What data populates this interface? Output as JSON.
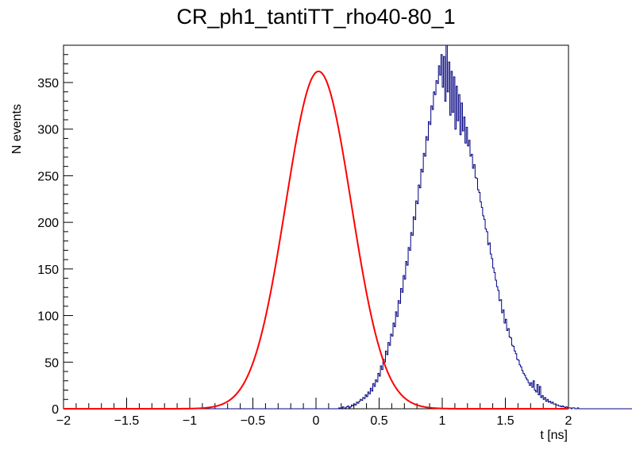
{
  "chart_data": {
    "type": "histogram",
    "title": "CR_ph1_tantiTT_rho40-80_1",
    "xlabel": "t [ns]",
    "ylabel": "N events",
    "xlim": [
      -2,
      2
    ],
    "ylim": [
      0,
      390
    ],
    "x_ticks": [
      -2,
      -1.5,
      -1,
      -0.5,
      0,
      0.5,
      1,
      1.5,
      2
    ],
    "x_tick_labels": [
      "−2",
      "−1.5",
      "−1",
      "−0.5",
      "0",
      "0.5",
      "1",
      "1.5",
      "2"
    ],
    "y_ticks": [
      0,
      50,
      100,
      150,
      200,
      250,
      300,
      350
    ],
    "y_tick_labels": [
      "0",
      "50",
      "100",
      "150",
      "200",
      "250",
      "300",
      "350"
    ],
    "histogram": {
      "name": "",
      "color": "#000080",
      "bin_start": -2,
      "bin_width": 0.01,
      "counts": [
        0,
        0,
        0,
        0,
        0,
        0,
        0,
        0,
        0,
        0,
        0,
        0,
        0,
        0,
        0,
        0,
        0,
        0,
        0,
        0,
        0,
        0,
        0,
        0,
        0,
        0,
        0,
        0,
        0,
        0,
        0,
        0,
        0,
        0,
        0,
        0,
        0,
        0,
        0,
        0,
        0,
        0,
        0,
        0,
        0,
        0,
        0,
        0,
        0,
        0,
        0,
        0,
        0,
        0,
        0,
        0,
        0,
        0,
        0,
        0,
        0,
        0,
        0,
        0,
        0,
        0,
        0,
        0,
        0,
        0,
        0,
        0,
        0,
        0,
        0,
        0,
        0,
        0,
        0,
        0,
        0,
        0,
        0,
        0,
        0,
        0,
        0,
        0,
        0,
        0,
        0,
        0,
        0,
        0,
        0,
        0,
        0,
        0,
        0,
        0,
        0,
        0,
        0,
        0,
        0,
        0,
        0,
        0,
        0,
        0,
        0,
        0,
        0,
        0,
        0,
        0,
        0,
        0,
        0,
        0,
        0,
        0,
        0,
        0,
        0,
        0,
        0,
        0,
        0,
        0,
        0,
        0,
        0,
        0,
        0,
        0,
        0,
        0,
        0,
        0,
        0,
        0,
        0,
        0,
        0,
        0,
        0,
        0,
        0,
        0,
        0,
        0,
        0,
        0,
        0,
        0,
        0,
        0,
        0,
        0,
        0,
        0,
        0,
        0,
        0,
        0,
        0,
        0,
        0,
        0,
        0,
        0,
        0,
        0,
        0,
        0,
        0,
        0,
        0,
        0,
        0,
        0,
        0,
        0,
        0,
        0,
        0,
        0,
        0,
        0,
        0,
        0,
        0,
        0,
        0,
        0,
        0,
        0,
        0,
        0,
        0,
        0,
        0,
        0,
        0,
        0,
        0,
        0,
        0,
        0,
        0,
        0,
        0,
        0,
        0,
        0,
        0,
        0,
        1,
        0,
        1,
        2,
        0,
        1,
        2,
        3,
        1,
        2,
        4,
        3,
        5,
        4,
        7,
        6,
        8,
        10,
        9,
        12,
        11,
        15,
        13,
        18,
        16,
        22,
        19,
        27,
        24,
        31,
        29,
        38,
        35,
        46,
        42,
        53,
        50,
        62,
        58,
        71,
        68,
        80,
        78,
        92,
        88,
        104,
        99,
        116,
        113,
        129,
        125,
        143,
        139,
        158,
        154,
        173,
        170,
        189,
        186,
        206,
        203,
        223,
        220,
        240,
        237,
        257,
        254,
        274,
        271,
        292,
        288,
        308,
        305,
        325,
        321,
        340,
        337,
        352,
        349,
        368,
        358,
        380,
        345,
        378,
        330,
        390,
        340,
        372,
        315,
        362,
        318,
        356,
        300,
        346,
        309,
        337,
        294,
        328,
        298,
        313,
        285,
        302,
        282,
        288,
        271,
        273,
        258,
        262,
        248,
        247,
        235,
        232,
        222,
        216,
        207,
        203,
        193,
        190,
        176,
        178,
        166,
        161,
        151,
        146,
        138,
        131,
        127,
        116,
        117,
        103,
        106,
        92,
        96,
        84,
        86,
        77,
        76,
        68,
        67,
        62,
        59,
        53,
        52,
        47,
        45,
        41,
        38,
        36,
        33,
        31,
        28,
        25,
        28,
        23,
        30,
        20,
        18,
        26,
        15,
        24,
        12,
        14,
        10,
        12,
        8,
        10,
        7,
        8,
        6,
        7,
        5,
        5,
        4,
        4,
        3,
        3,
        2,
        3,
        2,
        1,
        2,
        1,
        1,
        1,
        0,
        1,
        1,
        0,
        0,
        1,
        0,
        0,
        0,
        0,
        0,
        0,
        0,
        0,
        0,
        0,
        0,
        0,
        0,
        0,
        0,
        0,
        0,
        0,
        0,
        0,
        0,
        0,
        0,
        0,
        0,
        0,
        0,
        0,
        0,
        0,
        0,
        0,
        0,
        0,
        0,
        0,
        0,
        0,
        0,
        0,
        0,
        0,
        0,
        0,
        0,
        0,
        0,
        0,
        0,
        0,
        0,
        0,
        0,
        0,
        0,
        0,
        0,
        0,
        0,
        0,
        0,
        0,
        0,
        0,
        0,
        0,
        0,
        0,
        0,
        0,
        0,
        0,
        0,
        0,
        0,
        0,
        0,
        0,
        0,
        0,
        0,
        0,
        0,
        0,
        0,
        0,
        0,
        0,
        0,
        0,
        0,
        0,
        0,
        0,
        0,
        0,
        0,
        0,
        0,
        0,
        0,
        0,
        0,
        0,
        0,
        0,
        0,
        0,
        0,
        0,
        0,
        0,
        0,
        0,
        0,
        0,
        0,
        0,
        0,
        0,
        0,
        0,
        0,
        0,
        0,
        0,
        0,
        0,
        0,
        0,
        0,
        0,
        0,
        0,
        0,
        0,
        0,
        0,
        0,
        0,
        0,
        0,
        0,
        0,
        0,
        0,
        0,
        0,
        0,
        0,
        0,
        0,
        0,
        0,
        0,
        0,
        0,
        0,
        0,
        0,
        0,
        0,
        0,
        0,
        0,
        0,
        0,
        0,
        0,
        0,
        0,
        0,
        0,
        0,
        0,
        0,
        0,
        0,
        0,
        0,
        0,
        0,
        0,
        0,
        0,
        0,
        0,
        0,
        0,
        0,
        0,
        0
      ]
    },
    "fit": {
      "name": "",
      "type": "gaussian",
      "color": "#ff0000",
      "amplitude": 362,
      "mean": 0.02,
      "sigma": 0.26
    }
  }
}
